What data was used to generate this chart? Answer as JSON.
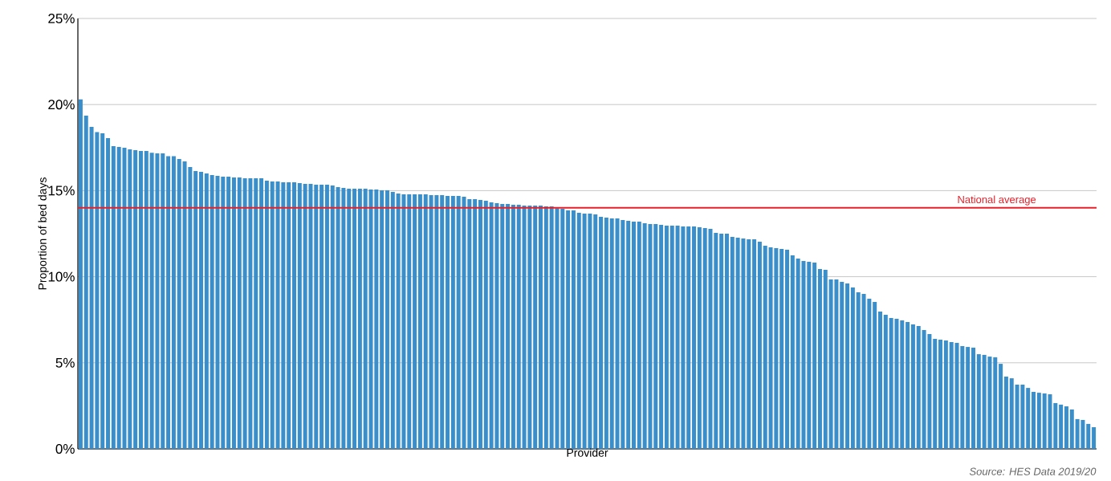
{
  "chart_data": {
    "type": "bar",
    "xlabel": "Provider",
    "ylabel": "Proportion of bed days",
    "categories": [
      null,
      null,
      null,
      null,
      null,
      null,
      null,
      null,
      null,
      null,
      null,
      null,
      null,
      null,
      null,
      null,
      null,
      null,
      null,
      null,
      null,
      null,
      null,
      null,
      null,
      null,
      null,
      null,
      null,
      null,
      null,
      null,
      null,
      null,
      null,
      null,
      null,
      null,
      null,
      null,
      null,
      null,
      null,
      null,
      null,
      null,
      null,
      null,
      null,
      null,
      null,
      null,
      null,
      null,
      null,
      null,
      null,
      null,
      null,
      null,
      null,
      null,
      null,
      null,
      null,
      null,
      null,
      null,
      null,
      null,
      null,
      null,
      null,
      null,
      null,
      null,
      null,
      null,
      null,
      null,
      null,
      null,
      null,
      null,
      null,
      null,
      null,
      null,
      null,
      null,
      null,
      null,
      null,
      null,
      null,
      null,
      null,
      null,
      null,
      null,
      null,
      null,
      null,
      null,
      null,
      null,
      null,
      null,
      null,
      null,
      null,
      null,
      null,
      null,
      null,
      null,
      null,
      null,
      null,
      null,
      null,
      null,
      null,
      null,
      null,
      null,
      null,
      null,
      null,
      null,
      null,
      null,
      null,
      null,
      null,
      null,
      null,
      null,
      null,
      null,
      null,
      null,
      null,
      null,
      null,
      null,
      null,
      null,
      null,
      null,
      null,
      null,
      null,
      null,
      null,
      null,
      null,
      null,
      null,
      null,
      null,
      null,
      null,
      null,
      null,
      null,
      null,
      null,
      null,
      null,
      null,
      null,
      null,
      null,
      null,
      null,
      null,
      null,
      null,
      null,
      null,
      null,
      null,
      null,
      null,
      null
    ],
    "values": [
      20.3,
      19.36,
      18.7,
      18.4,
      18.33,
      18.05,
      17.58,
      17.54,
      17.49,
      17.4,
      17.35,
      17.3,
      17.3,
      17.2,
      17.16,
      17.16,
      17.0,
      17.0,
      16.84,
      16.7,
      16.37,
      16.14,
      16.09,
      16.0,
      15.9,
      15.86,
      15.81,
      15.81,
      15.76,
      15.76,
      15.72,
      15.72,
      15.72,
      15.72,
      15.58,
      15.53,
      15.53,
      15.49,
      15.49,
      15.49,
      15.44,
      15.39,
      15.39,
      15.35,
      15.35,
      15.35,
      15.3,
      15.2,
      15.16,
      15.11,
      15.11,
      15.11,
      15.11,
      15.07,
      15.07,
      15.02,
      15.02,
      14.93,
      14.83,
      14.79,
      14.79,
      14.79,
      14.79,
      14.79,
      14.74,
      14.74,
      14.74,
      14.69,
      14.69,
      14.69,
      14.65,
      14.51,
      14.51,
      14.46,
      14.41,
      14.32,
      14.27,
      14.23,
      14.23,
      14.18,
      14.18,
      14.13,
      14.13,
      14.13,
      14.13,
      14.09,
      14.09,
      13.98,
      13.95,
      13.85,
      13.85,
      13.71,
      13.67,
      13.67,
      13.62,
      13.48,
      13.43,
      13.39,
      13.39,
      13.29,
      13.25,
      13.2,
      13.2,
      13.11,
      13.06,
      13.06,
      13.01,
      12.97,
      12.97,
      12.97,
      12.92,
      12.92,
      12.92,
      12.87,
      12.83,
      12.78,
      12.55,
      12.5,
      12.5,
      12.31,
      12.27,
      12.22,
      12.17,
      12.17,
      12.03,
      11.8,
      11.71,
      11.66,
      11.61,
      11.57,
      11.24,
      11.05,
      10.91,
      10.87,
      10.82,
      10.45,
      10.4,
      9.84,
      9.84,
      9.7,
      9.61,
      9.38,
      9.1,
      9.0,
      8.72,
      8.54,
      7.98,
      7.79,
      7.6,
      7.56,
      7.46,
      7.37,
      7.23,
      7.14,
      6.9,
      6.67,
      6.39,
      6.34,
      6.3,
      6.2,
      6.16,
      5.97,
      5.92,
      5.88,
      5.5,
      5.46,
      5.36,
      5.32,
      4.94,
      4.2,
      4.1,
      3.73,
      3.73,
      3.54,
      3.31,
      3.26,
      3.22,
      3.17,
      2.66,
      2.57,
      2.47,
      2.29,
      1.73,
      1.68,
      1.45,
      1.26
    ],
    "color": "#3a8fcb",
    "ylim": [
      0,
      25
    ],
    "yticks": [
      {
        "value": 0,
        "label": "0%"
      },
      {
        "value": 5,
        "label": "5%"
      },
      {
        "value": 10,
        "label": "10%"
      },
      {
        "value": 15,
        "label": "15%"
      },
      {
        "value": 20,
        "label": "20%"
      },
      {
        "value": 25,
        "label": "25%"
      }
    ],
    "grid": "y",
    "ref_lines": [
      {
        "axis": "y",
        "value": 14,
        "label": "National average",
        "color": "#e8202a"
      }
    ],
    "annotations": [
      "Source: HES Data 2019/20"
    ]
  }
}
